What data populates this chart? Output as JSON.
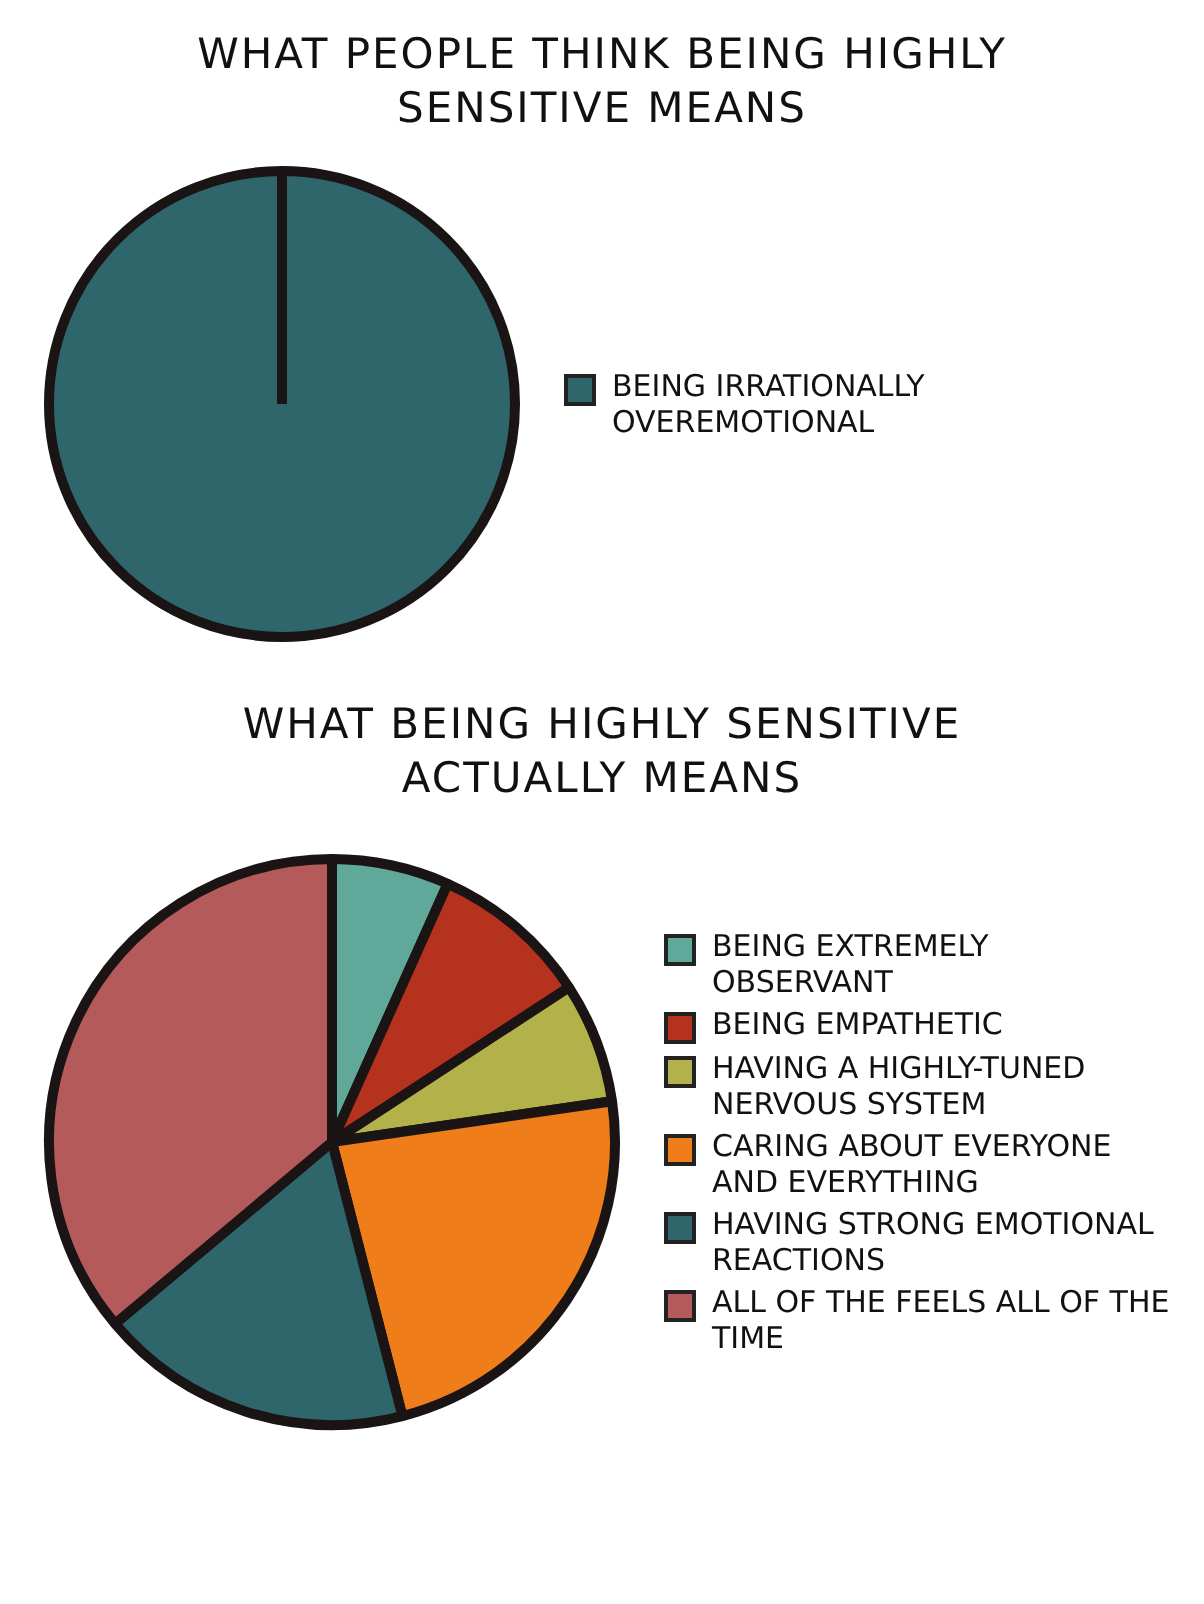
{
  "chart_data": [
    {
      "type": "pie",
      "title": "WHAT PEOPLE THINK BEING HIGHLY SENSITIVE MEANS",
      "categories": [
        "BEING IRRATIONALLY OVEREMOTIONAL"
      ],
      "values": [
        100
      ],
      "colors": [
        "#2f666b"
      ],
      "legend": "right"
    },
    {
      "type": "pie",
      "title": "WHAT BEING HIGHLY SENSITIVE ACTUALLY MEANS",
      "categories": [
        "BEING EXTREMELY OBSERVANT",
        "BEING EMPATHETIC",
        "HAVING A HIGHLY-TUNED NERVOUS SYSTEM",
        "CARING ABOUT EVERYONE AND EVERYTHING",
        "HAVING STRONG EMOTIONAL REACTIONS",
        "ALL OF THE FEELS ALL OF THE TIME"
      ],
      "values": [
        6.7,
        9.1,
        6.9,
        23.3,
        17.9,
        36.1
      ],
      "colors": [
        "#5fa89a",
        "#b5321e",
        "#b3b24a",
        "#ee7d1a",
        "#2f666b",
        "#b55a5a"
      ],
      "legend": "right"
    }
  ]
}
